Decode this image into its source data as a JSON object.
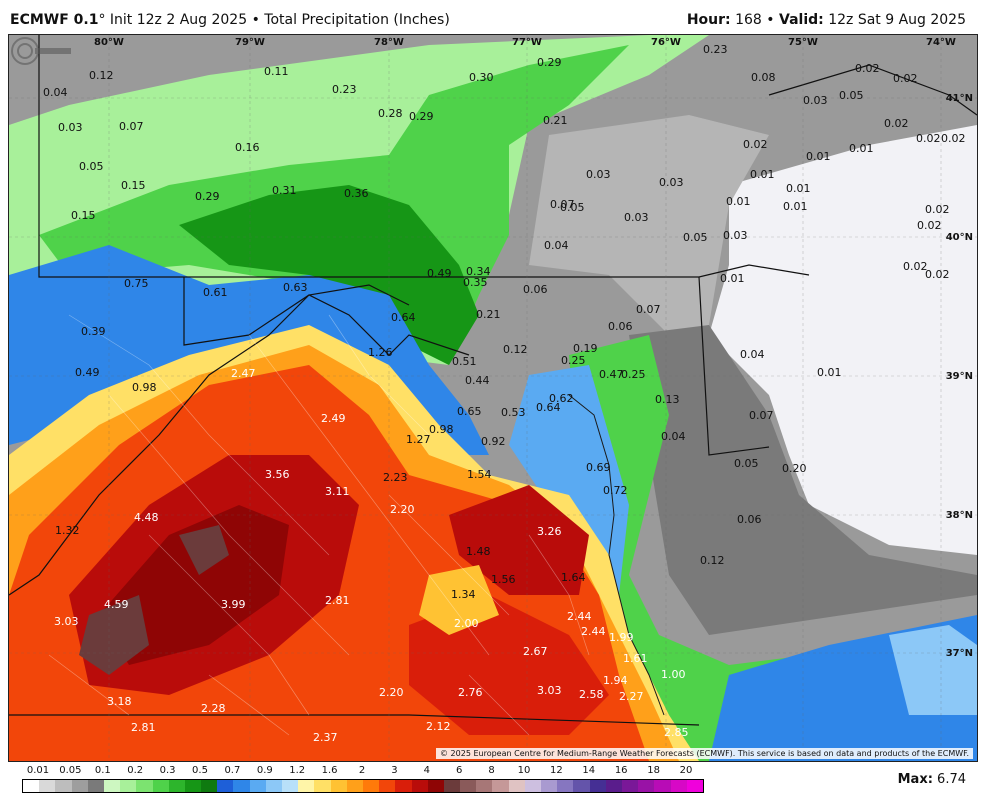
{
  "header": {
    "model": "ECMWF 0.1",
    "degree": "°",
    "init": "Init 12z 2 Aug 2025",
    "sep": "•",
    "product": "Total Precipitation (Inches)",
    "hour_label": "Hour:",
    "hour_value": "168",
    "valid_label": "Valid:",
    "valid_value": "12z Sat 9 Aug 2025"
  },
  "axes": {
    "lon": [
      "80°W",
      "79°W",
      "78°W",
      "77°W",
      "76°W",
      "75°W",
      "74°W"
    ],
    "lat": [
      "41°N",
      "40°N",
      "39°N",
      "38°N",
      "37°N"
    ]
  },
  "map_values": [
    "0.04",
    "0.12",
    "0.11",
    "0.23",
    "0.30",
    "0.29",
    "0.23",
    "0.08",
    "0.02",
    "0.02",
    "0.03",
    "0.07",
    "0.28",
    "0.29",
    "0.21",
    "0.03",
    "0.05",
    "0.02",
    "0.16",
    "0.05",
    "0.01",
    "0.01",
    "0.02",
    "0.02",
    "0.03",
    "0.15",
    "0.31",
    "0.36",
    "0.03",
    "0.02",
    "0.01",
    "0.01",
    "0.29",
    "0.07",
    "0.05",
    "0.03",
    "0.01",
    "0.01",
    "0.02",
    "0.15",
    "0.04",
    "0.05",
    "0.03",
    "0.02",
    "0.75",
    "0.61",
    "0.63",
    "0.49",
    "0.34",
    "0.35",
    "0.06",
    "0.01",
    "0.02",
    "0.02",
    "0.39",
    "0.64",
    "0.21",
    "0.06",
    "0.07",
    "1.26",
    "0.51",
    "0.12",
    "0.19",
    "0.04",
    "0.49",
    "0.98",
    "2.47",
    "0.44",
    "0.25",
    "0.47",
    "0.25",
    "0.01",
    "0.65",
    "0.53",
    "0.62",
    "0.64",
    "0.13",
    "0.07",
    "2.49",
    "1.27",
    "0.98",
    "0.92",
    "0.04",
    "0.69",
    "0.05",
    "0.20",
    "3.56",
    "3.11",
    "2.23",
    "1.54",
    "0.72",
    "1.32",
    "4.48",
    "2.20",
    "3.26",
    "0.06",
    "1.48",
    "1.56",
    "1.64",
    "0.12",
    "4.59",
    "3.99",
    "2.81",
    "1.34",
    "3.03",
    "2.00",
    "2.44",
    "2.44",
    "1.99",
    "2.67",
    "1.61",
    "1.00",
    "1.94",
    "3.18",
    "2.28",
    "2.20",
    "2.76",
    "3.03",
    "2.58",
    "2.27",
    "2.81",
    "2.12",
    "2.37",
    "2.85"
  ],
  "credit": "© 2025 European Centre for Medium-Range Weather Forecasts (ECMWF). This service is based on data and products of the ECMWF.",
  "legend": {
    "ticks": [
      "0.01",
      "0.05",
      "0.1",
      "0.2",
      "0.3",
      "0.5",
      "0.7",
      "0.9",
      "1.2",
      "1.6",
      "2",
      "3",
      "4",
      "6",
      "8",
      "10",
      "12",
      "14",
      "16",
      "18",
      "20"
    ],
    "colors": [
      "#ffffff",
      "#d9d9d9",
      "#bdbdbd",
      "#9e9e9e",
      "#7a7a7a",
      "#cdf7c1",
      "#a8f09a",
      "#7ce370",
      "#4fd24a",
      "#2db52c",
      "#169616",
      "#0f7a10",
      "#1e5fd8",
      "#2f86e8",
      "#5aaaf2",
      "#8cc8f7",
      "#b8e0f9",
      "#fff5a8",
      "#ffe066",
      "#ffc233",
      "#ffa01a",
      "#ff7a0a",
      "#f2460a",
      "#d91e0a",
      "#b90c0a",
      "#8f0505",
      "#6b3b3b",
      "#8a5a5a",
      "#a77777",
      "#c59898",
      "#e0c3c3",
      "#cdbfe0",
      "#a99ad0",
      "#8676c0",
      "#6454aa",
      "#452f94",
      "#5a1d8c",
      "#7a1898",
      "#9912a6",
      "#b80cb6",
      "#d708c6",
      "#f000dc"
    ]
  },
  "max": {
    "label": "Max:",
    "value": "6.74"
  }
}
